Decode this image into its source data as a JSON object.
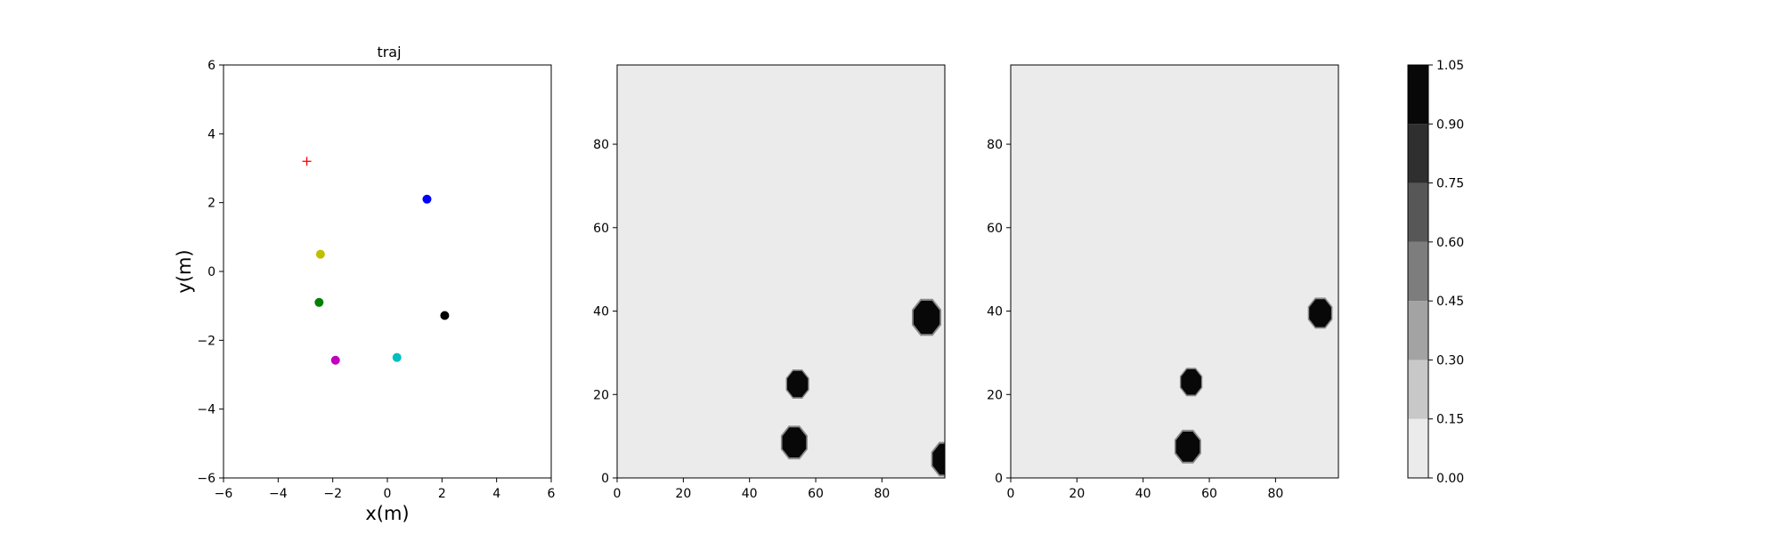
{
  "chart_data": [
    {
      "type": "scatter",
      "title": "traj",
      "xlabel": "x(m)",
      "ylabel": "y(m)",
      "xlim": [
        -6,
        6
      ],
      "ylim": [
        -6,
        6
      ],
      "xticks": [
        "−6",
        "−4",
        "−2",
        "0",
        "2",
        "4",
        "6"
      ],
      "yticks": [
        "−6",
        "−4",
        "−2",
        "0",
        "2",
        "4",
        "6"
      ],
      "grid": false,
      "points": [
        {
          "x": 1.45,
          "y": 2.1,
          "color": "#0000ff",
          "marker": "circle"
        },
        {
          "x": -2.45,
          "y": 0.5,
          "color": "#bfbf00",
          "marker": "circle"
        },
        {
          "x": -2.5,
          "y": -0.9,
          "color": "#008000",
          "marker": "circle"
        },
        {
          "x": 2.1,
          "y": -1.28,
          "color": "#000000",
          "marker": "circle"
        },
        {
          "x": 0.35,
          "y": -2.5,
          "color": "#00bfbf",
          "marker": "circle"
        },
        {
          "x": -1.9,
          "y": -2.58,
          "color": "#bf00bf",
          "marker": "circle"
        }
      ],
      "goal": {
        "x": -2.95,
        "y": 3.2,
        "color": "#ff0000",
        "marker": "plus"
      }
    },
    {
      "type": "heatmap",
      "xlim": [
        0,
        99
      ],
      "ylim": [
        0,
        99
      ],
      "xticks": [
        "0",
        "20",
        "40",
        "60",
        "80"
      ],
      "yticks": [
        "0",
        "20",
        "40",
        "60",
        "80"
      ],
      "background_value": 0.05,
      "blobs": [
        {
          "x": 93.5,
          "y": 38.5,
          "r": 4.3
        },
        {
          "x": 54.5,
          "y": 22.5,
          "r": 3.4
        },
        {
          "x": 53.5,
          "y": 8.5,
          "r": 3.9
        },
        {
          "x": 99,
          "y": 4.5,
          "r": 4.0
        }
      ]
    },
    {
      "type": "heatmap",
      "xlim": [
        0,
        99
      ],
      "ylim": [
        0,
        99
      ],
      "xticks": [
        "0",
        "20",
        "40",
        "60",
        "80"
      ],
      "yticks": [
        "0",
        "20",
        "40",
        "60",
        "80"
      ],
      "background_value": 0.05,
      "blobs": [
        {
          "x": 93.5,
          "y": 39.5,
          "r": 3.6
        },
        {
          "x": 54.5,
          "y": 23.0,
          "r": 3.3
        },
        {
          "x": 53.5,
          "y": 7.5,
          "r": 3.9
        }
      ]
    },
    {
      "type": "colorbar",
      "ticks": [
        "0.00",
        "0.15",
        "0.30",
        "0.45",
        "0.60",
        "0.75",
        "0.90",
        "1.05"
      ],
      "levels": [
        0.0,
        0.15,
        0.3,
        0.45,
        0.6,
        0.75,
        0.9,
        1.05
      ],
      "band_colors": [
        "#ebebeb",
        "#c8c8c8",
        "#a3a3a3",
        "#7d7d7d",
        "#575757",
        "#2f2f2f",
        "#080808"
      ]
    }
  ]
}
